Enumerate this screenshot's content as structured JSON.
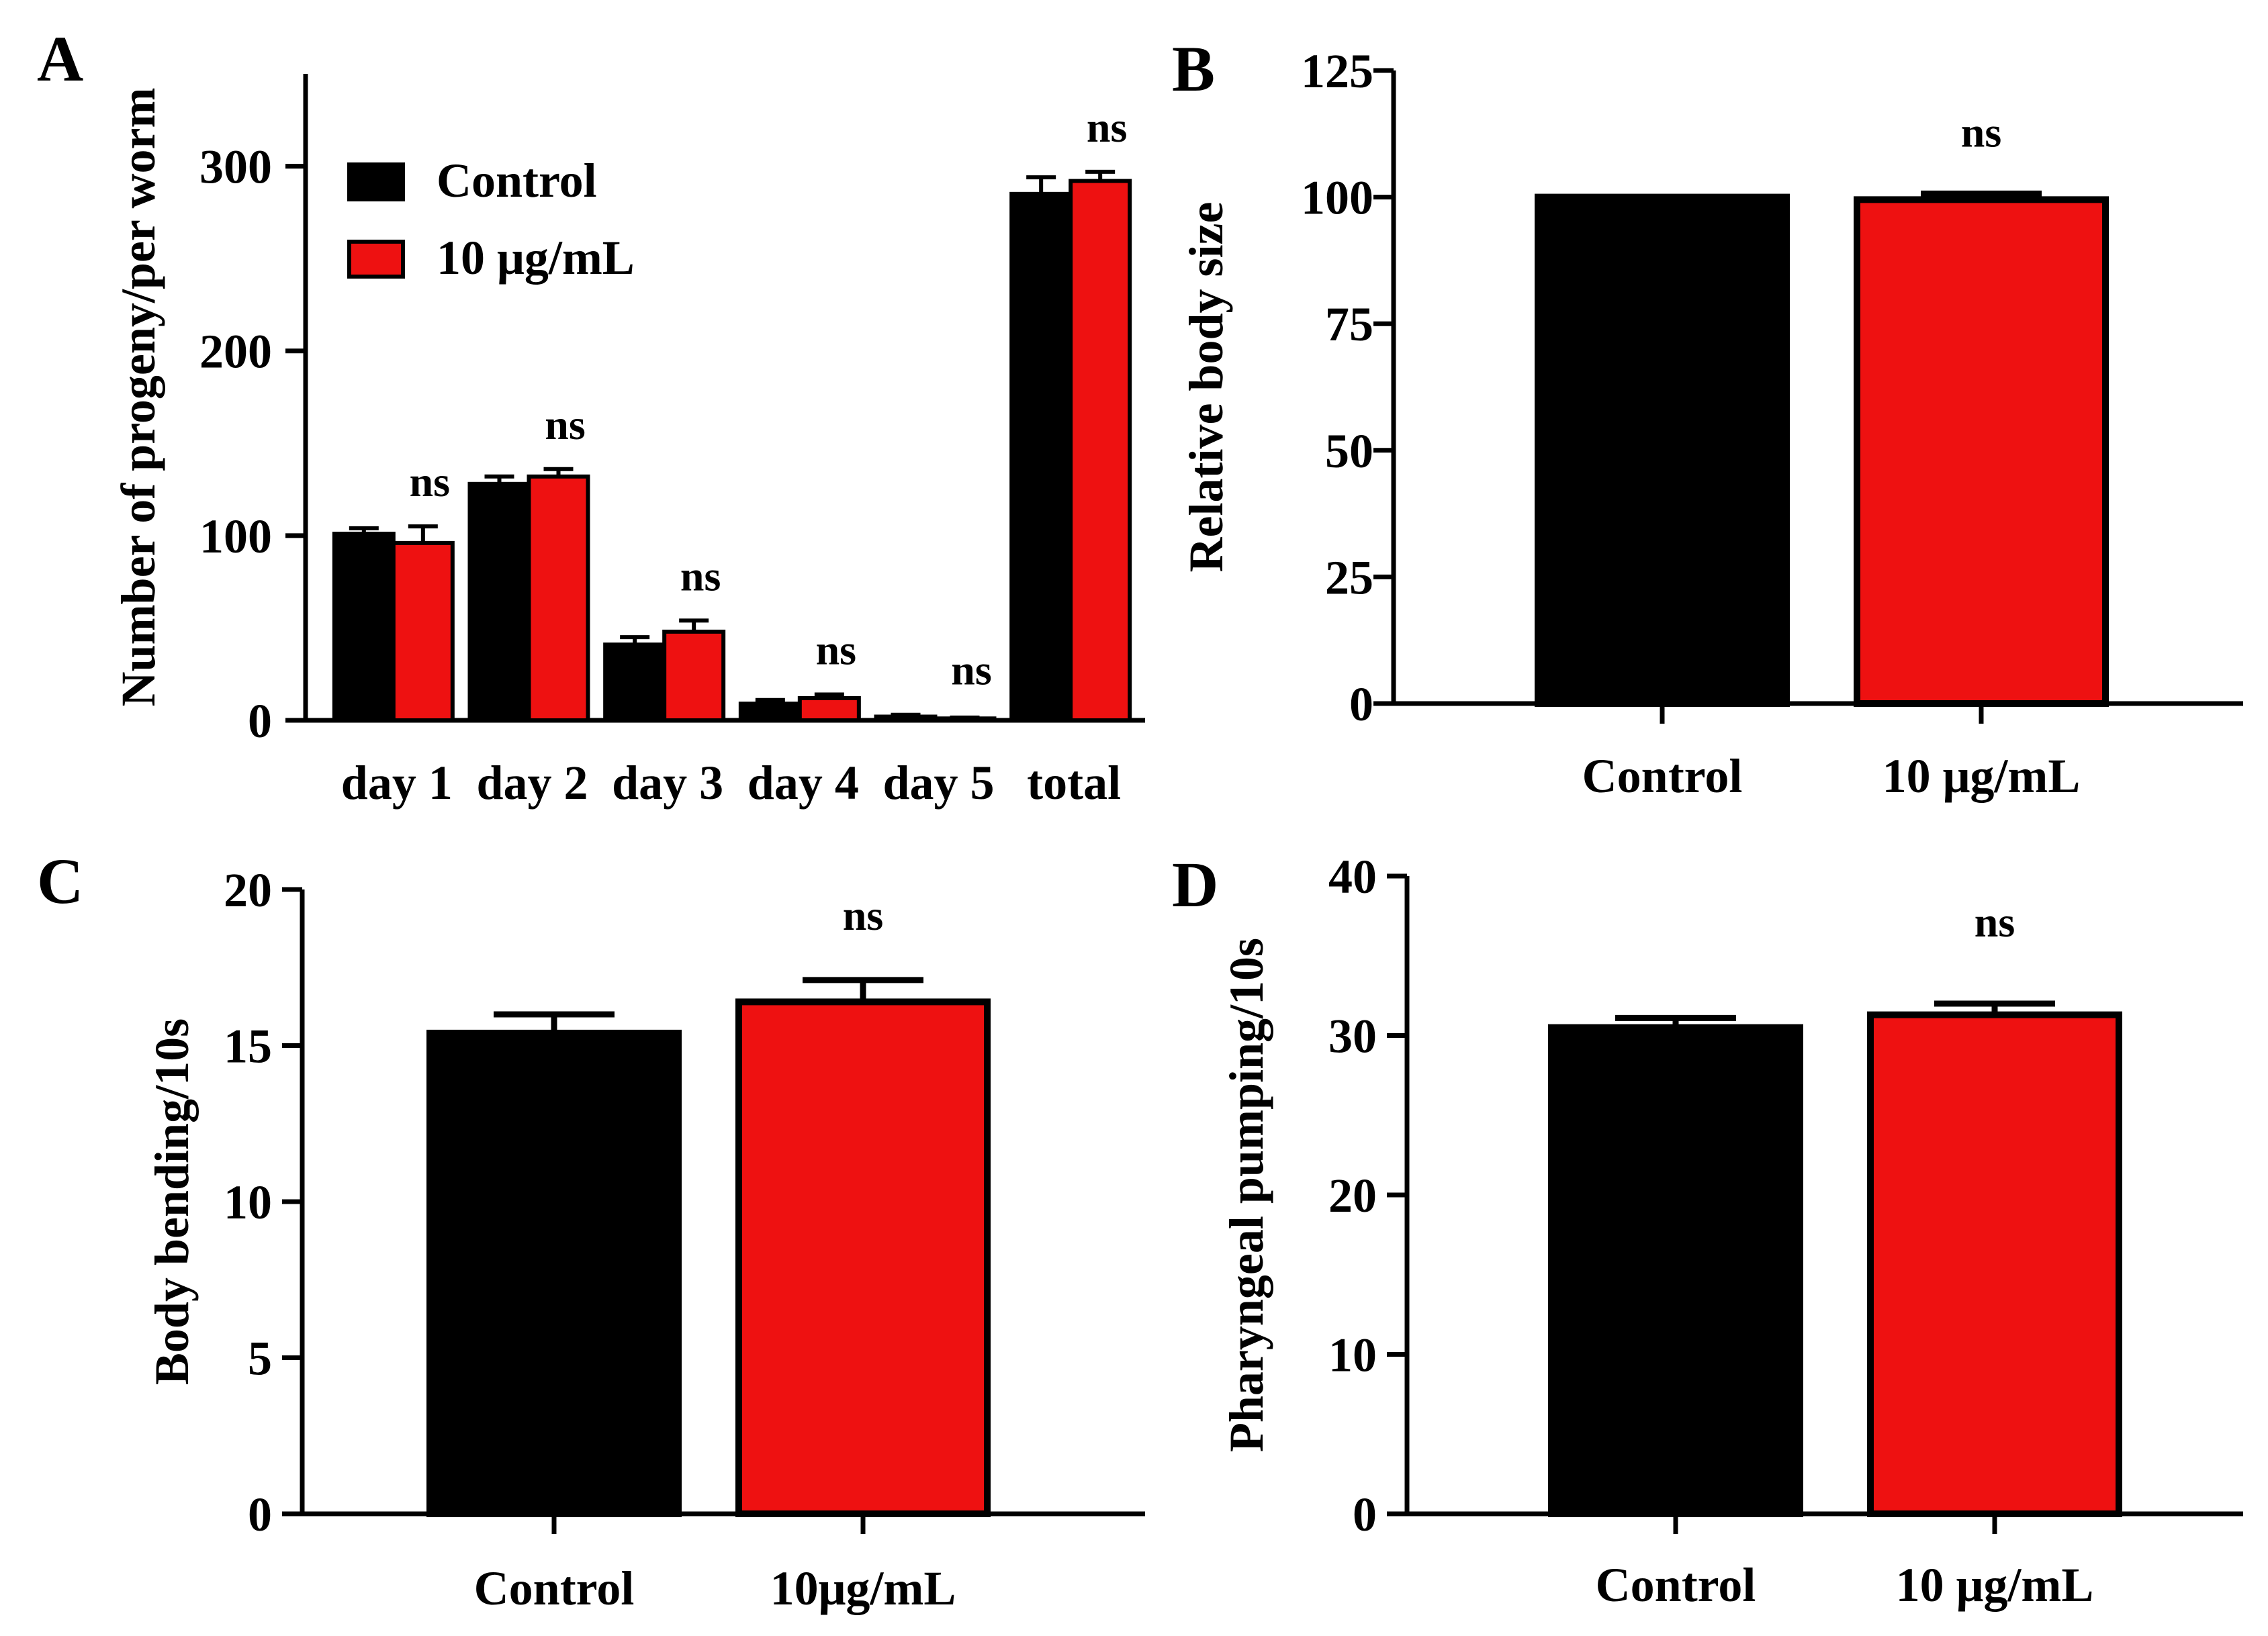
{
  "colors": {
    "control": "#000000",
    "treated": "#ee1111",
    "outline": "#000000"
  },
  "chart_data": [
    {
      "type": "bar",
      "panel": "A",
      "ylabel": "Number of progeny/per worm",
      "xlabel": "",
      "ylim": [
        0,
        350
      ],
      "yticks": [
        0,
        100,
        200,
        300
      ],
      "categories": [
        "day 1",
        "day 2",
        "day 3",
        "day 4",
        "day 5",
        "total"
      ],
      "series": [
        {
          "name": "Control",
          "color": "#000000",
          "values": [
            101,
            128,
            41,
            9,
            2,
            285
          ],
          "errors": [
            3,
            4,
            4,
            2,
            1,
            9
          ]
        },
        {
          "name": "10 μg/mL",
          "color": "#ee1111",
          "values": [
            96,
            132,
            48,
            12,
            1,
            292
          ],
          "errors": [
            9,
            4,
            6,
            2,
            0.5,
            5
          ]
        }
      ],
      "significance": [
        "ns",
        "ns",
        "ns",
        "ns",
        "ns",
        "ns"
      ],
      "legend": [
        "Control",
        "10 μg/mL"
      ],
      "legend_position": "top-left"
    },
    {
      "type": "bar",
      "panel": "B",
      "ylabel": "Relative body size",
      "xlabel": "",
      "ylim": [
        0,
        125
      ],
      "yticks": [
        0,
        25,
        50,
        75,
        100,
        125
      ],
      "categories": [
        "Control",
        "10 μg/mL"
      ],
      "series": [
        {
          "name": "Relative body size",
          "values": [
            100,
            99.5
          ],
          "errors": [
            0,
            1.2
          ]
        }
      ],
      "significance": [
        "ns"
      ]
    },
    {
      "type": "bar",
      "panel": "C",
      "ylabel": "Body bending/10s",
      "xlabel": "",
      "ylim": [
        0,
        20
      ],
      "yticks": [
        0,
        5,
        10,
        15,
        20
      ],
      "categories": [
        "Control",
        "10μg/mL"
      ],
      "series": [
        {
          "name": "Body bending",
          "values": [
            15.4,
            16.4
          ],
          "errors": [
            0.6,
            0.7
          ]
        }
      ],
      "significance": [
        "ns"
      ]
    },
    {
      "type": "bar",
      "panel": "D",
      "ylabel": "Pharyngeal pumping/10s",
      "xlabel": "",
      "ylim": [
        0,
        40
      ],
      "yticks": [
        0,
        10,
        20,
        30,
        40
      ],
      "categories": [
        "Control",
        "10 μg/mL"
      ],
      "series": [
        {
          "name": "Pharyngeal pumping",
          "values": [
            30.5,
            31.3
          ],
          "errors": [
            0.6,
            0.7
          ]
        }
      ],
      "significance": [
        "ns"
      ]
    }
  ]
}
